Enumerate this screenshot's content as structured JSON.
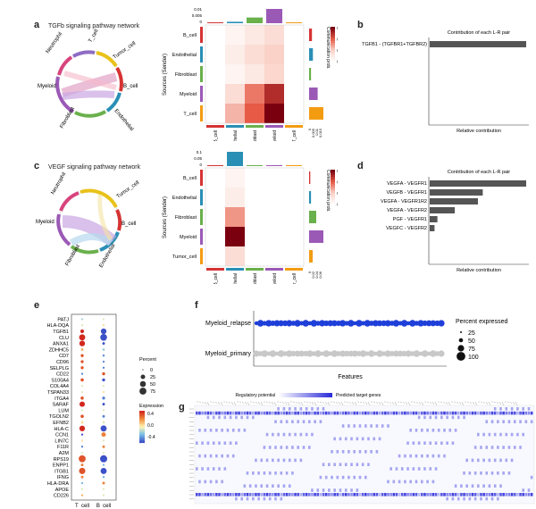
{
  "panels": {
    "a": {
      "letter": "a",
      "title": "TGFb signaling pathway network"
    },
    "b": {
      "letter": "b"
    },
    "c": {
      "letter": "c",
      "title": "VEGF signaling pathway network"
    },
    "d": {
      "letter": "d"
    },
    "e": {
      "letter": "e"
    },
    "f": {
      "letter": "f"
    },
    "g": {
      "letter": "g"
    }
  },
  "chord_a": {
    "labels": [
      "Neutrophil",
      "T_cell",
      "Tumor_cell",
      "B_cell",
      "Endothelial",
      "Fibroblast",
      "Myeloid"
    ]
  },
  "chord_c": {
    "labels": [
      "Neutrophil",
      "Tumor_cell",
      "B_cell",
      "Endothelial",
      "Fibroblast",
      "Myeloid"
    ]
  },
  "colors": {
    "bar_gray": "#555555",
    "heat_high": "#7a0010",
    "dot_blue": "#1f3fd9"
  },
  "chart_data": [
    {
      "id": "heatmap_a",
      "type": "heatmap",
      "ylabel": "Sources (Sender)",
      "rows": [
        "B_cell",
        "Endothelial",
        "Fibroblast",
        "Myeloid",
        "T_cell"
      ],
      "cols": [
        "B_cell",
        "Endothelial",
        "Fibroblast",
        "Myeloid",
        "T_cell"
      ],
      "values": [
        [
          0,
          0.0005,
          0.001,
          0.0015,
          0
        ],
        [
          0,
          0.0008,
          0.0015,
          0.002,
          0
        ],
        [
          0,
          0.0005,
          0.001,
          0.0018,
          0
        ],
        [
          0,
          0.0015,
          0.0035,
          0.005,
          0
        ],
        [
          0,
          0.0025,
          0.004,
          0.006,
          0
        ]
      ],
      "legend_title": "Communication prob.",
      "legend_ticks": [
        "0.006",
        "0.004",
        "0.002",
        "0"
      ],
      "top_ticks": [
        "0.01",
        "0.005",
        "0"
      ],
      "top_bars": [
        0.0005,
        0.001,
        0.004,
        0.01,
        0.0005
      ],
      "side_ticks": [
        "0",
        "0.005",
        "0.01",
        "0.015"
      ],
      "side_bars": [
        0.003,
        0.004,
        0.002,
        0.009,
        0.015
      ]
    },
    {
      "id": "bar_b",
      "type": "bar",
      "title": "Contribution of each L-R pair",
      "xlabel": "Relative contribution",
      "categories": [
        "TGFB1 - (TGFBR1+TGFBR2)"
      ],
      "values": [
        1.0
      ]
    },
    {
      "id": "heatmap_c",
      "type": "heatmap",
      "ylabel": "Sources (Sender)",
      "rows": [
        "B_cell",
        "Endothelial",
        "Fibroblast",
        "Myeloid",
        "Tumor_cell"
      ],
      "cols": [
        "B_cell",
        "Endothelial",
        "Fibroblast",
        "Myeloid",
        "Tumor_cell"
      ],
      "values": [
        [
          0,
          0.005,
          0,
          0,
          0
        ],
        [
          0,
          0.008,
          0,
          0,
          0
        ],
        [
          0,
          0.03,
          0,
          0,
          0
        ],
        [
          0,
          0.06,
          0,
          0,
          0
        ],
        [
          0,
          0.015,
          0,
          0,
          0
        ]
      ],
      "legend_title": "Communication prob.",
      "legend_ticks": [
        "0.06",
        "0.04",
        "0.02",
        "0"
      ],
      "top_ticks": [
        "0.1",
        "0.05",
        "0"
      ],
      "top_bars": [
        0.001,
        0.1,
        0.002,
        0.002,
        0.001
      ],
      "side_ticks": [
        "0",
        "0.02",
        "0.04",
        "0.06"
      ],
      "side_bars": [
        0.005,
        0.008,
        0.03,
        0.06,
        0.015
      ]
    },
    {
      "id": "bar_d",
      "type": "bar",
      "title": "Contribution of each L-R pair",
      "xlabel": "Relative contribution",
      "categories": [
        "VEGFA - VEGFR1",
        "VEGFB - VEGFR1",
        "VEGFA - VEGFR1R2",
        "VEGFA - VEGFR2",
        "PGF - VEGFR1",
        "VEGFC - VEGFR2"
      ],
      "values": [
        1.0,
        0.55,
        0.5,
        0.26,
        0.08,
        0.05
      ]
    },
    {
      "id": "dot_e",
      "type": "scatter",
      "genes": [
        "PATJ",
        "HLA-DQA",
        "TGFB1",
        "CLU",
        "ANXA1",
        "ZDHHC5",
        "CD7",
        "CD96",
        "SELPLG",
        "CD22",
        "S100A4",
        "COL4A4",
        "TSPAN33",
        "ITGA4",
        "SARAF",
        "LUM",
        "TGOLN2",
        "EFNB2",
        "HLA-C",
        "CCN1",
        "LIN7C",
        "F11R",
        "A2M",
        "RPS19",
        "ENPP1",
        "ITGB1",
        "IFNG",
        "HLA-DRA",
        "APOE",
        "CD226"
      ],
      "groups": [
        "T_cell",
        "B_cell"
      ],
      "percent": [
        [
          2,
          2
        ],
        [
          2,
          2
        ],
        [
          15,
          45
        ],
        [
          55,
          70
        ],
        [
          45,
          5
        ],
        [
          5,
          5
        ],
        [
          8,
          2
        ],
        [
          8,
          2
        ],
        [
          8,
          2
        ],
        [
          2,
          8
        ],
        [
          10,
          8
        ],
        [
          2,
          2
        ],
        [
          2,
          2
        ],
        [
          10,
          8
        ],
        [
          40,
          5
        ],
        [
          2,
          2
        ],
        [
          10,
          5
        ],
        [
          5,
          5
        ],
        [
          45,
          55
        ],
        [
          2,
          25
        ],
        [
          2,
          2
        ],
        [
          2,
          5
        ],
        [
          2,
          2
        ],
        [
          75,
          80
        ],
        [
          5,
          2
        ],
        [
          60,
          55
        ],
        [
          5,
          2
        ],
        [
          2,
          5
        ],
        [
          2,
          2
        ],
        [
          2,
          2
        ]
      ],
      "expression": [
        [
          -0.1,
          0
        ],
        [
          0,
          0.1
        ],
        [
          0.5,
          -0.4
        ],
        [
          0.5,
          -0.4
        ],
        [
          0.5,
          -0.4
        ],
        [
          0.2,
          -0.1
        ],
        [
          0.4,
          -0.3
        ],
        [
          0.4,
          -0.3
        ],
        [
          0.4,
          -0.3
        ],
        [
          -0.3,
          0.4
        ],
        [
          0.4,
          -0.4
        ],
        [
          0,
          0
        ],
        [
          0,
          0.1
        ],
        [
          0.4,
          -0.3
        ],
        [
          0.5,
          -0.4
        ],
        [
          0,
          0
        ],
        [
          0.4,
          -0.3
        ],
        [
          0.1,
          0
        ],
        [
          0.5,
          -0.4
        ],
        [
          -0.4,
          0.3
        ],
        [
          0.1,
          0
        ],
        [
          -0.3,
          0.3
        ],
        [
          0,
          0
        ],
        [
          0.4,
          -0.4
        ],
        [
          0.3,
          -0.2
        ],
        [
          0.4,
          -0.4
        ],
        [
          0.3,
          -0.2
        ],
        [
          -0.2,
          0.3
        ],
        [
          0,
          0
        ],
        [
          0.2,
          0
        ]
      ],
      "size_legend_title": "Percent",
      "size_legend": [
        "0",
        "25",
        "50",
        "75"
      ],
      "color_legend_title": "Expression",
      "color_legend": [
        "0.4",
        "0.0",
        "-0.4"
      ]
    },
    {
      "id": "dot_f",
      "type": "scatter",
      "rows": [
        "Myeloid_relapse",
        "Myeloid_primary"
      ],
      "xlabel": "Features",
      "size_legend_title": "Percent expressed",
      "size_legend": [
        "25",
        "50",
        "75",
        "100"
      ],
      "colors": [
        "#1f3fd9",
        "#c8c8c8"
      ]
    },
    {
      "id": "heat_g",
      "type": "heatmap",
      "legend_left": "Regulatory potential",
      "legend_right": "Predicted target genes"
    }
  ]
}
